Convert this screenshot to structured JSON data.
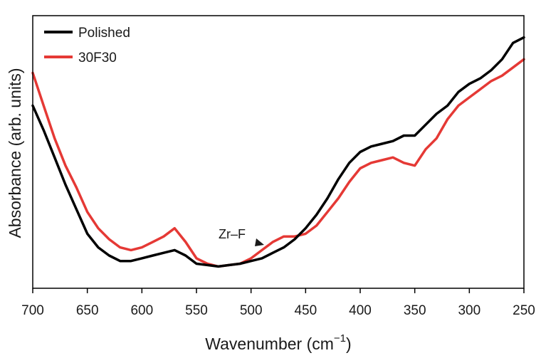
{
  "chart_data": {
    "type": "line",
    "title": "",
    "xlabel": "Wavenumber (cm",
    "xlabel_sup": "−1",
    "xlabel_close": ")",
    "ylabel": "Absorbance (arb. units)",
    "xlim": [
      700,
      250
    ],
    "x_reversed": true,
    "ylim": [
      0,
      1
    ],
    "y_ticks_shown": false,
    "grid": false,
    "legend_position": "top-left",
    "x_ticks": [
      "700",
      "650",
      "600",
      "550",
      "500",
      "450",
      "400",
      "350",
      "300",
      "250"
    ],
    "x_tick_values": [
      700,
      650,
      600,
      550,
      500,
      450,
      400,
      350,
      300,
      250
    ],
    "series": [
      {
        "name": "Polished",
        "color": "#000000",
        "x": [
          700,
          690,
          680,
          670,
          660,
          650,
          640,
          630,
          620,
          610,
          600,
          590,
          580,
          570,
          560,
          550,
          540,
          530,
          520,
          510,
          500,
          490,
          480,
          470,
          460,
          450,
          440,
          430,
          420,
          410,
          400,
          390,
          380,
          370,
          360,
          350,
          340,
          330,
          320,
          310,
          300,
          290,
          280,
          270,
          260,
          250
        ],
        "y": [
          0.67,
          0.58,
          0.48,
          0.38,
          0.29,
          0.2,
          0.15,
          0.12,
          0.1,
          0.1,
          0.11,
          0.12,
          0.13,
          0.14,
          0.12,
          0.09,
          0.085,
          0.08,
          0.085,
          0.09,
          0.1,
          0.11,
          0.13,
          0.15,
          0.18,
          0.22,
          0.27,
          0.33,
          0.4,
          0.46,
          0.5,
          0.52,
          0.53,
          0.54,
          0.56,
          0.56,
          0.6,
          0.64,
          0.67,
          0.72,
          0.75,
          0.77,
          0.8,
          0.84,
          0.9,
          0.92
        ]
      },
      {
        "name": "30F30",
        "color": "#e53935",
        "x": [
          700,
          690,
          680,
          670,
          660,
          650,
          640,
          630,
          620,
          610,
          600,
          590,
          580,
          570,
          560,
          550,
          540,
          530,
          520,
          510,
          500,
          490,
          480,
          470,
          460,
          450,
          440,
          430,
          420,
          410,
          400,
          390,
          380,
          370,
          360,
          350,
          340,
          330,
          320,
          310,
          300,
          290,
          280,
          270,
          260,
          250
        ],
        "y": [
          0.79,
          0.67,
          0.55,
          0.45,
          0.37,
          0.28,
          0.22,
          0.18,
          0.15,
          0.14,
          0.15,
          0.17,
          0.19,
          0.22,
          0.17,
          0.11,
          0.09,
          0.08,
          0.085,
          0.09,
          0.11,
          0.14,
          0.17,
          0.19,
          0.19,
          0.2,
          0.23,
          0.28,
          0.33,
          0.39,
          0.44,
          0.46,
          0.47,
          0.48,
          0.46,
          0.45,
          0.51,
          0.55,
          0.62,
          0.67,
          0.7,
          0.73,
          0.76,
          0.78,
          0.81,
          0.84
        ]
      }
    ],
    "annotations": [
      {
        "text": "Zr–F",
        "x": 490,
        "y": 0.15
      }
    ]
  }
}
